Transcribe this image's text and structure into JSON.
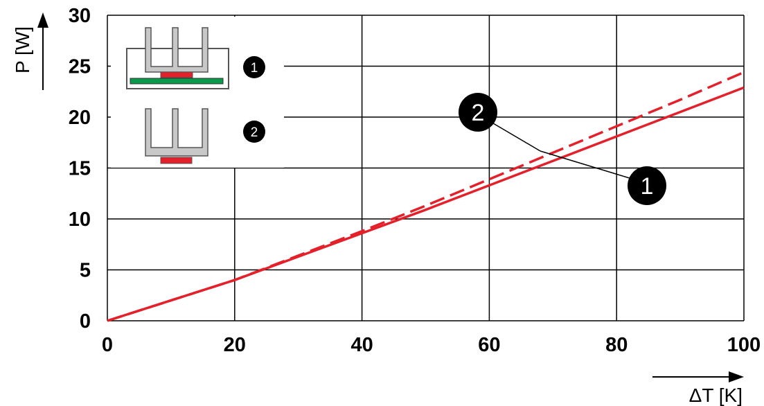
{
  "chart_data": {
    "type": "line",
    "xlabel": "ΔT [K]",
    "ylabel": "P [W]",
    "xlim": [
      0,
      100
    ],
    "ylim": [
      0,
      30
    ],
    "x_ticks": [
      "0",
      "20",
      "40",
      "60",
      "80",
      "100"
    ],
    "y_ticks": [
      "0",
      "5",
      "10",
      "15",
      "20",
      "25",
      "30"
    ],
    "grid": true,
    "series": [
      {
        "name": "1",
        "style": "solid",
        "color": "#e4202b",
        "points": [
          [
            0,
            0
          ],
          [
            10,
            2
          ],
          [
            20,
            4
          ],
          [
            30,
            6.3
          ],
          [
            40,
            8.6
          ],
          [
            50,
            10.9
          ],
          [
            60,
            13.3
          ],
          [
            70,
            15.7
          ],
          [
            80,
            18.1
          ],
          [
            90,
            20.5
          ],
          [
            100,
            22.9
          ]
        ]
      },
      {
        "name": "2",
        "style": "dashed",
        "color": "#e4202b",
        "points": [
          [
            0,
            0
          ],
          [
            10,
            2
          ],
          [
            20,
            4
          ],
          [
            30,
            6.4
          ],
          [
            40,
            8.8
          ],
          [
            50,
            11.3
          ],
          [
            60,
            13.9
          ],
          [
            70,
            16.5
          ],
          [
            80,
            19.1
          ],
          [
            90,
            21.7
          ],
          [
            100,
            24.4
          ]
        ]
      }
    ],
    "legend": [
      {
        "marker": "1",
        "icon": "heatsink-on-board-icon"
      },
      {
        "marker": "2",
        "icon": "heatsink-icon"
      }
    ],
    "callouts": [
      {
        "label": "2",
        "points_to_series": "2"
      },
      {
        "label": "1",
        "points_to_series": "1"
      }
    ]
  }
}
